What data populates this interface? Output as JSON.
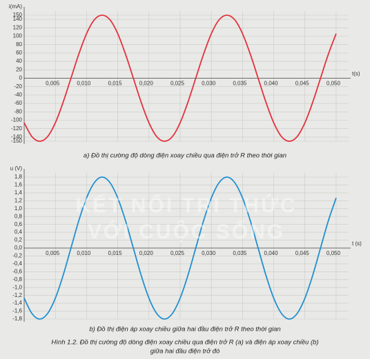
{
  "chart_data": [
    {
      "type": "line",
      "y_label": "i(mA)",
      "x_label": "t(s)",
      "caption": "a) Đồ thị cường độ dòng điện xoay chiều qua điện trở R theo thời gian",
      "xlim": [
        0,
        0.052
      ],
      "ylim": [
        -150,
        150
      ],
      "xticks": [
        {
          "value": 0.005,
          "label": "0,005"
        },
        {
          "value": 0.01,
          "label": "0,010"
        },
        {
          "value": 0.015,
          "label": "0,015"
        },
        {
          "value": 0.02,
          "label": "0,020"
        },
        {
          "value": 0.025,
          "label": "0,025"
        },
        {
          "value": 0.03,
          "label": "0,030"
        },
        {
          "value": 0.035,
          "label": "0,035"
        },
        {
          "value": 0.04,
          "label": "0,040"
        },
        {
          "value": 0.045,
          "label": "0,045"
        },
        {
          "value": 0.05,
          "label": "0,050"
        }
      ],
      "yticks": [
        150,
        140,
        120,
        100,
        80,
        60,
        40,
        20,
        0,
        -20,
        -40,
        -60,
        -80,
        -100,
        -120,
        -140,
        -150
      ],
      "grid": true,
      "x": [
        0,
        0.00125,
        0.0025,
        0.00375,
        0.005,
        0.00625,
        0.0075,
        0.00875,
        0.01,
        0.01125,
        0.0125,
        0.01375,
        0.015,
        0.01625,
        0.0175,
        0.01875,
        0.02,
        0.02125,
        0.0225,
        0.02375,
        0.025,
        0.02625,
        0.0275,
        0.02875,
        0.03,
        0.03125,
        0.0325,
        0.03375,
        0.035,
        0.03625,
        0.0375,
        0.03875,
        0.04,
        0.04125,
        0.0425,
        0.04375,
        0.045,
        0.04625,
        0.0475,
        0.04875,
        0.05
      ],
      "series": [
        {
          "color": "#e2313c",
          "values": [
            -106,
            -139,
            -150,
            -139,
            -106,
            -57,
            0,
            57,
            106,
            139,
            150,
            139,
            106,
            57,
            0,
            -57,
            -106,
            -139,
            -150,
            -139,
            -106,
            -57,
            0,
            57,
            106,
            139,
            150,
            139,
            106,
            57,
            0,
            -57,
            -106,
            -139,
            -150,
            -139,
            -106,
            -57,
            0,
            57,
            106
          ]
        }
      ]
    },
    {
      "type": "line",
      "y_label": "u (V)",
      "x_label": "t (s)",
      "caption": "b) Đồ thị điện áp xoay chiều giữa hai đầu điện trở R theo thời gian",
      "xlim": [
        0,
        0.052
      ],
      "ylim": [
        -1.8,
        1.8
      ],
      "xticks": [
        {
          "value": 0.005,
          "label": "0,005"
        },
        {
          "value": 0.01,
          "label": "0,010"
        },
        {
          "value": 0.015,
          "label": "0,015"
        },
        {
          "value": 0.02,
          "label": "0,020"
        },
        {
          "value": 0.025,
          "label": "0,025"
        },
        {
          "value": 0.03,
          "label": "0,030"
        },
        {
          "value": 0.035,
          "label": "0,035"
        },
        {
          "value": 0.04,
          "label": "0,040"
        },
        {
          "value": 0.045,
          "label": "0,045"
        },
        {
          "value": 0.05,
          "label": "0,050"
        }
      ],
      "yticks": [
        {
          "value": 1.8,
          "label": "1,8"
        },
        {
          "value": 1.6,
          "label": "1,6"
        },
        {
          "value": 1.4,
          "label": "1,4"
        },
        {
          "value": 1.2,
          "label": "1,2"
        },
        {
          "value": 1.0,
          "label": "1,0"
        },
        {
          "value": 0.8,
          "label": "0,8"
        },
        {
          "value": 0.6,
          "label": "0,6"
        },
        {
          "value": 0.4,
          "label": "0,4"
        },
        {
          "value": 0.2,
          "label": "0,2"
        },
        {
          "value": 0,
          "label": "0,0"
        },
        {
          "value": -0.2,
          "label": "-0,2"
        },
        {
          "value": -0.4,
          "label": "-0,4"
        },
        {
          "value": -0.6,
          "label": "-0,6"
        },
        {
          "value": -0.8,
          "label": "-0,8"
        },
        {
          "value": -1.0,
          "label": "-1,0"
        },
        {
          "value": -1.2,
          "label": "-1,2"
        },
        {
          "value": -1.4,
          "label": "-1,4"
        },
        {
          "value": -1.6,
          "label": "-1,6"
        },
        {
          "value": -1.8,
          "label": "-1,8"
        }
      ],
      "grid": true,
      "x": [
        0,
        0.00125,
        0.0025,
        0.00375,
        0.005,
        0.00625,
        0.0075,
        0.00875,
        0.01,
        0.01125,
        0.0125,
        0.01375,
        0.015,
        0.01625,
        0.0175,
        0.01875,
        0.02,
        0.02125,
        0.0225,
        0.02375,
        0.025,
        0.02625,
        0.0275,
        0.02875,
        0.03,
        0.03125,
        0.0325,
        0.03375,
        0.035,
        0.03625,
        0.0375,
        0.03875,
        0.04,
        0.04125,
        0.0425,
        0.04375,
        0.045,
        0.04625,
        0.0475,
        0.04875,
        0.05
      ],
      "series": [
        {
          "color": "#1f8fcf",
          "values": [
            -1.27,
            -1.66,
            -1.8,
            -1.66,
            -1.27,
            -0.69,
            0,
            0.69,
            1.27,
            1.66,
            1.8,
            1.66,
            1.27,
            0.69,
            0,
            -0.69,
            -1.27,
            -1.66,
            -1.8,
            -1.66,
            -1.27,
            -0.69,
            0,
            0.69,
            1.27,
            1.66,
            1.8,
            1.66,
            1.27,
            0.69,
            0,
            -0.69,
            -1.27,
            -1.66,
            -1.8,
            -1.66,
            -1.27,
            -0.69,
            0,
            0.69,
            1.27
          ]
        }
      ]
    }
  ],
  "watermark": [
    "KẾT NỐI TRI THỨC",
    "VỚI CUỘC SỐNG"
  ],
  "figure_caption": [
    "Hình 1.2. Đồ thị cường độ dòng điện xoay chiều qua điện trở R (a) và điện áp xoay chiều (b)",
    "giữa hai đầu điện trở đó"
  ]
}
